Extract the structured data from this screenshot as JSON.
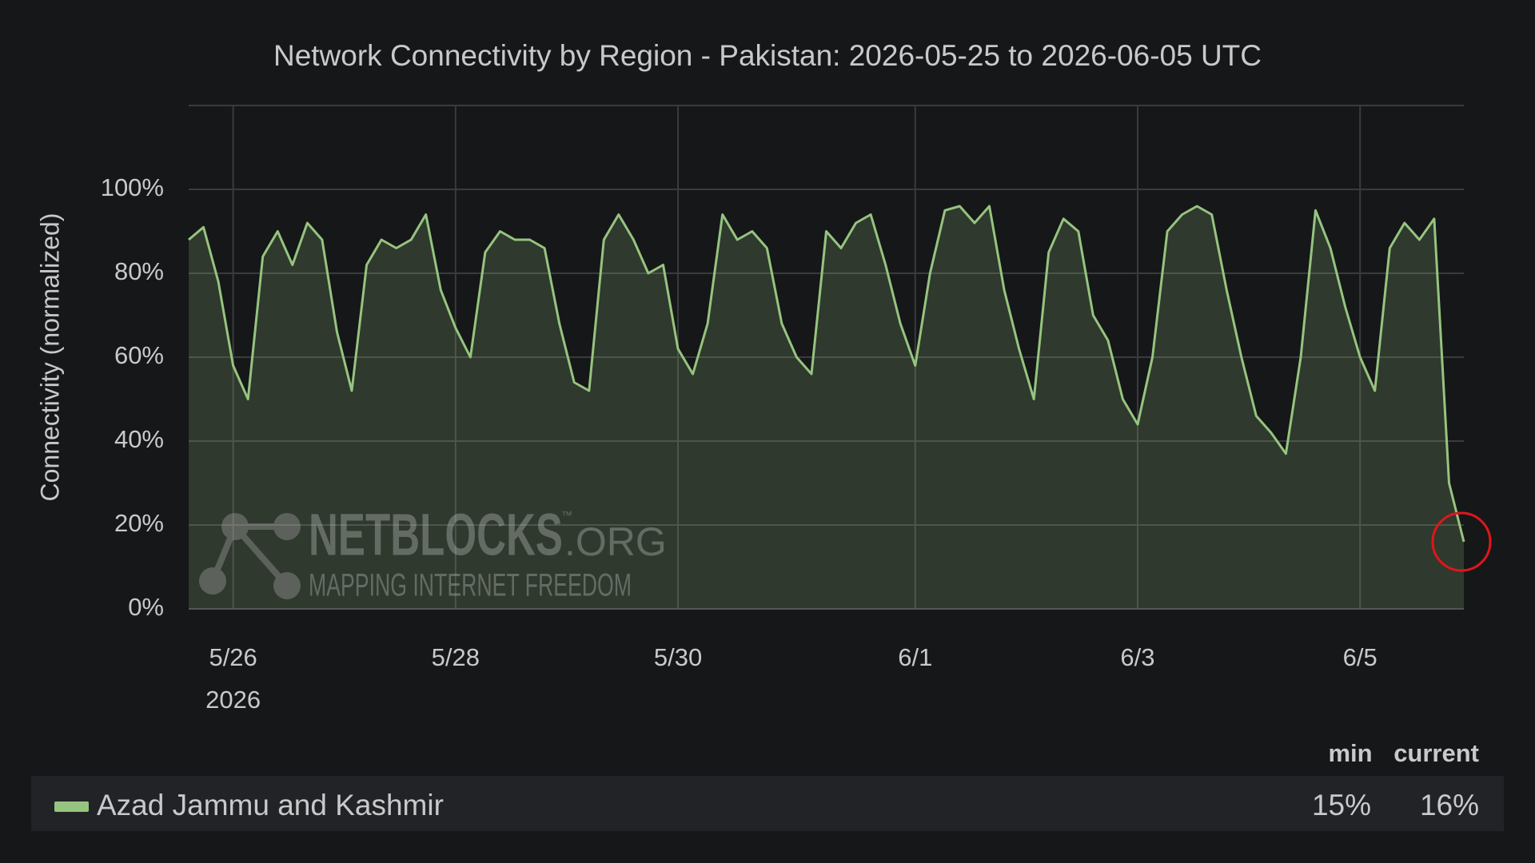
{
  "chart_data": {
    "type": "area-line",
    "title": "Network Connectivity by Region - Pakistan: 2026-05-25 to 2026-06-05 UTC",
    "ylabel": "Connectivity (normalized)",
    "categories": [
      null,
      null,
      null,
      "5/26",
      null,
      null,
      null,
      null,
      null,
      null,
      null,
      null,
      null,
      null,
      null,
      null,
      null,
      null,
      "5/28",
      null,
      null,
      null,
      null,
      null,
      null,
      null,
      null,
      null,
      null,
      null,
      null,
      null,
      null,
      "5/30",
      null,
      null,
      null,
      null,
      null,
      null,
      null,
      null,
      null,
      null,
      null,
      null,
      null,
      null,
      null,
      "6/1",
      null,
      null,
      null,
      null,
      null,
      null,
      null,
      null,
      null,
      null,
      null,
      null,
      null,
      null,
      "6/3",
      null,
      null,
      null,
      null,
      null,
      null,
      null,
      null,
      null,
      null,
      null,
      null,
      null,
      null,
      "6/5",
      null,
      null,
      null,
      null,
      null,
      null,
      null
    ],
    "x_year_label": "2026",
    "series": [
      {
        "name": "Azad Jammu and Kashmir",
        "color": "#96c47f",
        "values": [
          88,
          91,
          78,
          58,
          50,
          84,
          90,
          82,
          92,
          88,
          66,
          52,
          82,
          88,
          86,
          88,
          94,
          76,
          67,
          60,
          85,
          90,
          88,
          88,
          86,
          68,
          54,
          52,
          88,
          94,
          88,
          80,
          82,
          62,
          56,
          68,
          94,
          88,
          90,
          86,
          68,
          60,
          56,
          90,
          86,
          92,
          94,
          82,
          68,
          58,
          80,
          95,
          96,
          92,
          96,
          76,
          62,
          50,
          85,
          93,
          90,
          70,
          64,
          50,
          44,
          60,
          90,
          94,
          96,
          94,
          76,
          60,
          46,
          42,
          37,
          60,
          95,
          86,
          72,
          60,
          52,
          86,
          92,
          88,
          93,
          30,
          16
        ]
      }
    ],
    "ylim": [
      0,
      120
    ],
    "yticks": [
      {
        "value": 0,
        "label": "0%"
      },
      {
        "value": 20,
        "label": "20%"
      },
      {
        "value": 40,
        "label": "40%"
      },
      {
        "value": 60,
        "label": "60%"
      },
      {
        "value": 80,
        "label": "80%"
      },
      {
        "value": 100,
        "label": "100%"
      }
    ],
    "grid": true,
    "legend": {
      "columns": [
        "min",
        "current"
      ],
      "stats": [
        "15%",
        "16%"
      ]
    },
    "watermark": {
      "brand": "NETBLOCKS",
      "suffix": ".ORG",
      "tm": "™",
      "tagline": "MAPPING INTERNET FREEDOM"
    }
  }
}
